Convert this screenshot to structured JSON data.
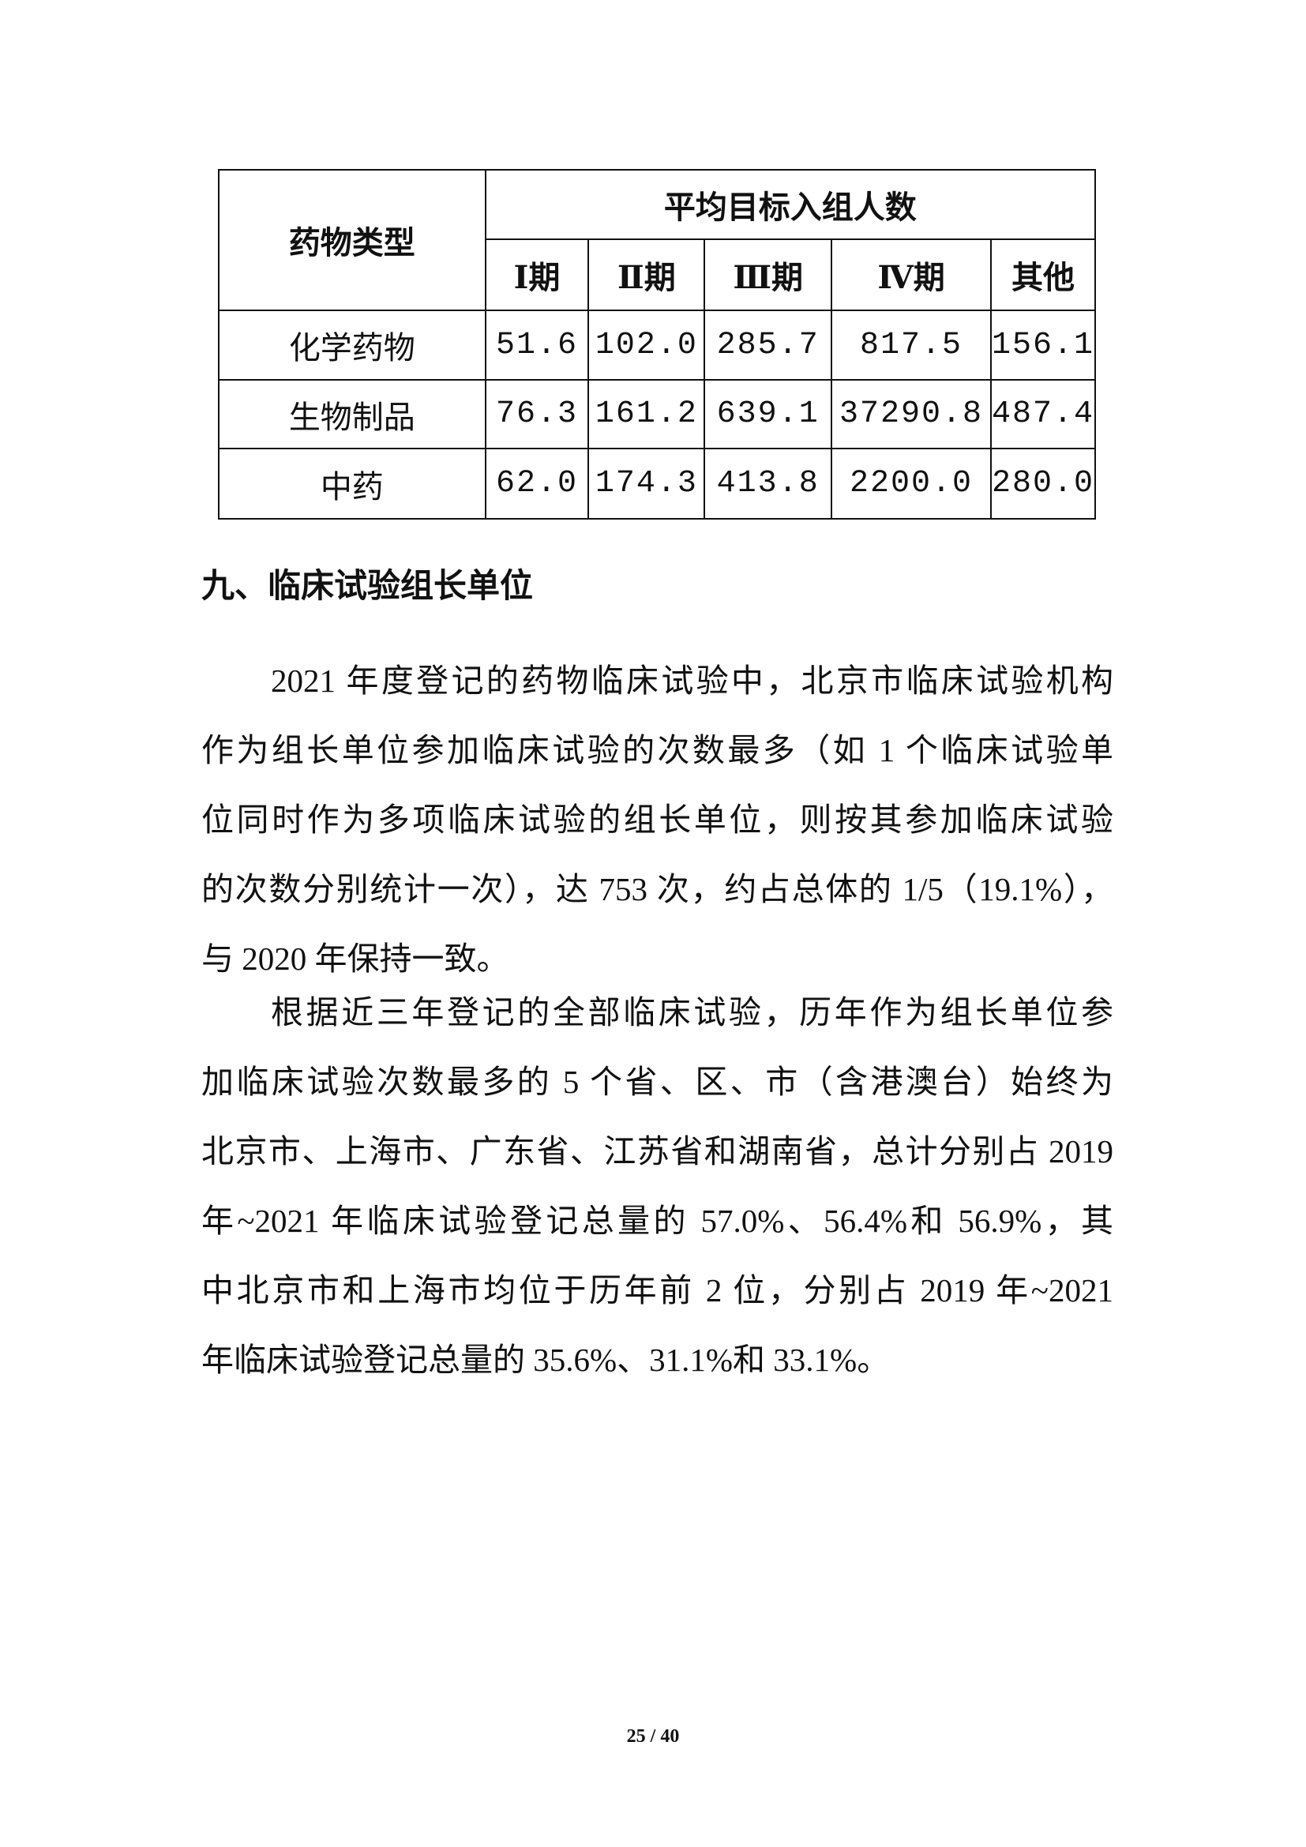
{
  "table": {
    "row_header": "药物类型",
    "group_header": "平均目标入组人数",
    "columns": [
      "Ⅰ期",
      "Ⅱ期",
      "Ⅲ期",
      "Ⅳ期",
      "其他"
    ],
    "rows": [
      {
        "type": "化学药物",
        "values": [
          "51.6",
          "102.0",
          "285.7",
          "817.5",
          "156.1"
        ]
      },
      {
        "type": "生物制品",
        "values": [
          "76.3",
          "161.2",
          "639.1",
          "37290.8",
          "487.4"
        ]
      },
      {
        "type": "中药",
        "values": [
          "62.0",
          "174.3",
          "413.8",
          "2200.0",
          "280.0"
        ]
      }
    ]
  },
  "section": {
    "heading": "九、临床试验组长单位",
    "paragraph1": [
      "2021 年度登记的药物临床试验中，北京市临床试验机构",
      "作为组长单位参加临床试验的次数最多（如 1 个临床试验单",
      "位同时作为多项临床试验的组长单位，则按其参加临床试验",
      "的次数分别统计一次），达 753 次，约占总体的 1/5（19.1%），",
      "与 2020 年保持一致。"
    ],
    "paragraph2": [
      "根据近三年登记的全部临床试验，历年作为组长单位参",
      "加临床试验次数最多的 5 个省、区、市（含港澳台）始终为",
      "北京市、上海市、广东省、江苏省和湖南省，总计分别占 2019",
      "年~2021 年临床试验登记总量的 57.0%、56.4%和 56.9%，其",
      "中北京市和上海市均位于历年前 2 位，分别占 2019 年~2021",
      "年临床试验登记总量的 35.6%、31.1%和 33.1%。"
    ]
  },
  "footer": {
    "page_number": "25 / 40"
  }
}
